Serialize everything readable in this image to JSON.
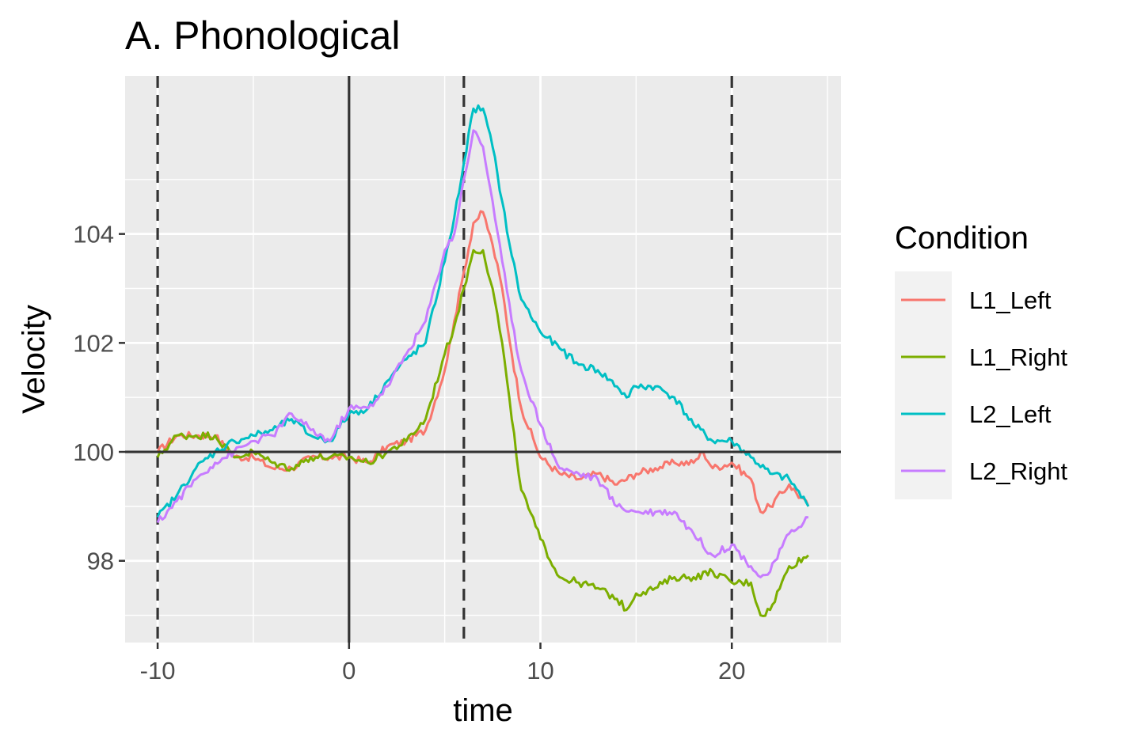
{
  "chart_data": {
    "type": "line",
    "title": "A. Phonological",
    "xlabel": "time",
    "ylabel": "Velocity",
    "xlim": [
      -11.7,
      25.7
    ],
    "ylim": [
      96.5,
      106.9
    ],
    "x_ticks": [
      -10,
      0,
      10,
      20
    ],
    "x_tick_labels": [
      "-10",
      "0",
      "10",
      "20"
    ],
    "y_ticks": [
      98,
      100,
      102,
      104
    ],
    "y_tick_labels": [
      "98",
      "100",
      "102",
      "104"
    ],
    "grid": true,
    "legend": {
      "title": "Condition",
      "position": "right"
    },
    "reference_lines": {
      "horizontal_solid": [
        100
      ],
      "vertical_solid": [
        0
      ],
      "vertical_dashed": [
        -10,
        6,
        20
      ]
    },
    "series": [
      {
        "name": "L1_Left",
        "color": "#F8766D",
        "x": [
          -10,
          -9,
          -8,
          -7,
          -6,
          -5,
          -4,
          -3,
          -2,
          -1,
          0,
          1,
          2,
          3,
          4,
          5,
          5.5,
          6,
          6.5,
          7,
          7.5,
          8,
          8.5,
          9,
          10,
          11,
          12,
          13,
          14,
          15,
          16,
          17,
          18,
          18.5,
          19,
          20,
          21,
          21.5,
          22,
          23,
          24
        ],
        "y": [
          100.0,
          100.3,
          100.3,
          100.3,
          99.9,
          99.9,
          99.7,
          99.7,
          99.9,
          99.9,
          99.9,
          99.8,
          100.1,
          100.2,
          100.4,
          101.5,
          102.4,
          103.3,
          104.2,
          104.4,
          103.8,
          103.0,
          101.8,
          100.8,
          99.9,
          99.6,
          99.5,
          99.6,
          99.4,
          99.6,
          99.7,
          99.8,
          99.8,
          100.0,
          99.7,
          99.8,
          99.5,
          98.9,
          99.0,
          99.4,
          99.0
        ]
      },
      {
        "name": "L1_Right",
        "color": "#7CAE00",
        "x": [
          -10,
          -9,
          -8,
          -7,
          -6,
          -5,
          -4,
          -3,
          -2,
          -1,
          0,
          1,
          2,
          3,
          4,
          5,
          5.5,
          6,
          6.5,
          7,
          7.5,
          8,
          8.5,
          9,
          10,
          11,
          12,
          13,
          14,
          14.5,
          15,
          16,
          17,
          18,
          19,
          20,
          21,
          21.5,
          22,
          23,
          24
        ],
        "y": [
          99.9,
          100.3,
          100.3,
          100.3,
          99.9,
          100.0,
          99.8,
          99.7,
          99.9,
          99.9,
          99.9,
          99.8,
          100.0,
          100.2,
          100.6,
          101.8,
          102.3,
          103.0,
          103.7,
          103.7,
          103.0,
          102.0,
          100.6,
          99.3,
          98.4,
          97.7,
          97.6,
          97.5,
          97.3,
          97.1,
          97.4,
          97.5,
          97.7,
          97.7,
          97.8,
          97.6,
          97.6,
          97.0,
          97.1,
          97.9,
          98.1
        ]
      },
      {
        "name": "L2_Left",
        "color": "#00BFC4",
        "x": [
          -10,
          -9,
          -8,
          -7,
          -6,
          -5,
          -4,
          -3,
          -2,
          -1,
          0,
          1,
          2,
          3,
          4,
          5,
          5.5,
          6,
          6.5,
          7,
          7.5,
          8,
          8.5,
          9,
          10,
          11,
          12,
          13,
          14,
          14.5,
          15,
          16,
          17,
          18,
          19,
          20,
          21,
          22,
          23,
          24
        ],
        "y": [
          98.8,
          99.2,
          99.7,
          100.0,
          100.2,
          100.3,
          100.4,
          100.6,
          100.3,
          100.2,
          100.7,
          100.8,
          101.3,
          101.7,
          102.0,
          103.5,
          104.3,
          105.3,
          106.3,
          106.3,
          105.6,
          104.6,
          103.6,
          102.8,
          102.2,
          101.9,
          101.6,
          101.5,
          101.2,
          101.0,
          101.2,
          101.2,
          101.0,
          100.5,
          100.2,
          100.2,
          99.9,
          99.6,
          99.5,
          99.0
        ]
      },
      {
        "name": "L2_Right",
        "color": "#C77CFF",
        "x": [
          -10,
          -9,
          -8,
          -7,
          -6,
          -5,
          -4,
          -3,
          -2,
          -1,
          0,
          1,
          2,
          3,
          4,
          5,
          5.5,
          6,
          6.5,
          7,
          7.5,
          8,
          8.5,
          9,
          10,
          11,
          12,
          13,
          14,
          15,
          16,
          17,
          18,
          19,
          20,
          21,
          21.5,
          22,
          23,
          24
        ],
        "y": [
          98.7,
          99.1,
          99.5,
          99.8,
          100.0,
          100.2,
          100.3,
          100.7,
          100.4,
          100.2,
          100.8,
          100.8,
          101.2,
          101.8,
          102.4,
          103.7,
          104.0,
          105.0,
          105.9,
          105.6,
          104.6,
          103.5,
          102.4,
          101.5,
          100.5,
          99.7,
          99.6,
          99.5,
          99.0,
          98.9,
          98.9,
          98.9,
          98.5,
          98.1,
          98.3,
          97.9,
          97.7,
          97.8,
          98.5,
          98.8
        ]
      }
    ]
  }
}
